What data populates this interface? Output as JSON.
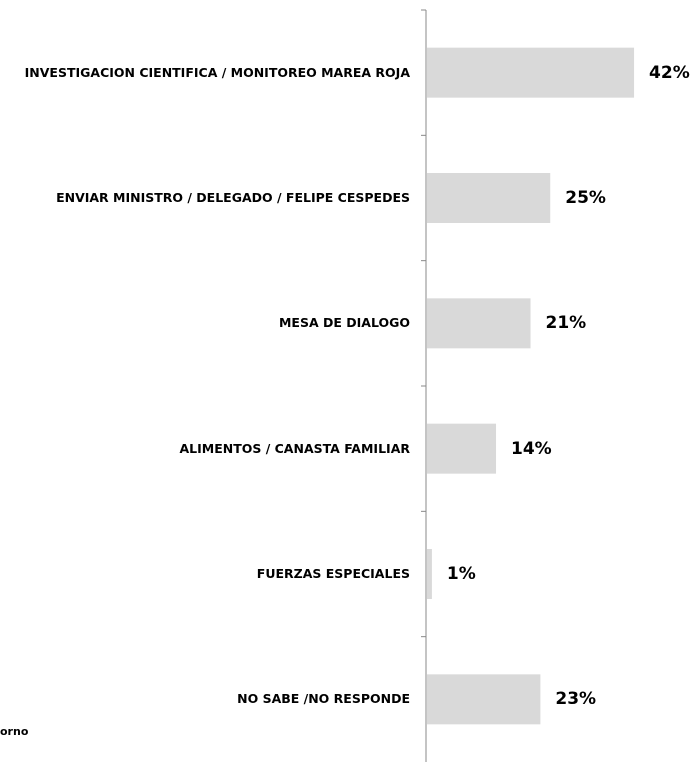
{
  "chart_data": {
    "type": "hbar",
    "categories": [
      "INVESTIGACION CIENTIFICA / MONITOREO MAREA ROJA",
      "ENVIAR MINISTRO / DELEGADO / FELIPE CESPEDES",
      "MESA DE DIALOGO",
      "ALIMENTOS / CANASTA FAMILIAR",
      "FUERZAS ESPECIALES",
      "NO SABE /NO RESPONDE"
    ],
    "values": [
      42,
      25,
      21,
      14,
      1,
      23
    ],
    "value_labels": [
      "42%",
      "25%",
      "21%",
      "14%",
      "1%",
      "23%"
    ],
    "color": "#d9d9d9",
    "note": "orno"
  }
}
